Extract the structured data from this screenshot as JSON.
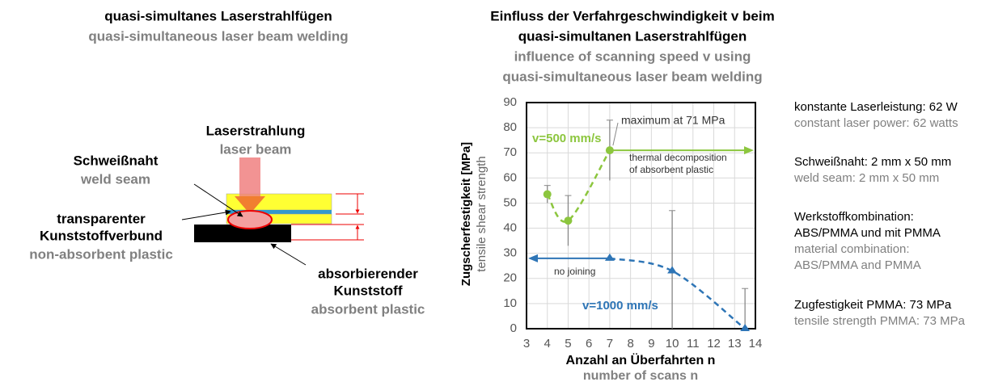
{
  "diagram": {
    "title": "quasi-simultanes Laserstrahlfügen",
    "subtitle": "quasi-simultaneous laser beam welding",
    "labels": [
      {
        "de": [
          "Laserstrahlung"
        ],
        "en": "laser beam"
      },
      {
        "de": [
          "Schweißnaht"
        ],
        "en": "weld seam"
      },
      {
        "de": [
          "transparenter",
          "Kunststoffverbund"
        ],
        "en": "non-absorbent plastic"
      },
      {
        "de": [
          "absorbierender",
          "Kunststoff"
        ],
        "en": "absorbent plastic"
      }
    ]
  },
  "chart_data": {
    "type": "line",
    "title": [
      "Einfluss der Verfahrgeschwindigkeit v beim",
      "quasi-simultanen Laserstrahlfügen"
    ],
    "subtitle": [
      "influence of scanning speed v using",
      "quasi-simultaneous laser beam welding"
    ],
    "ylabel": "Zugscherfestigkeit [MPa]",
    "ylabel_en": "tensile shear strength",
    "xlabel": "Anzahl an Überfahrten n",
    "xlabel_en": "number of scans n",
    "xlim": [
      3,
      14
    ],
    "xticks": [
      3,
      4,
      5,
      6,
      7,
      8,
      9,
      10,
      11,
      12,
      13,
      14
    ],
    "ylim": [
      0,
      90
    ],
    "yticks": [
      0,
      10,
      20,
      30,
      40,
      50,
      60,
      70,
      80,
      90
    ],
    "grid": true,
    "series": [
      {
        "name": "v=500 mm/s",
        "color": "#8cc63e",
        "marker": "circle",
        "x": [
          4,
          5,
          7
        ],
        "values": [
          53.5,
          43,
          71
        ],
        "errors": [
          3.5,
          10,
          12
        ]
      },
      {
        "name": "v=1000 mm/s",
        "color": "#2e75b6",
        "marker": "triangle",
        "x": [
          7,
          10,
          13.5
        ],
        "values": [
          28,
          23,
          0
        ],
        "errors": [
          null,
          24,
          16
        ]
      }
    ],
    "annotations": [
      {
        "text": [
          "maximum at 71 MPa"
        ]
      },
      {
        "text": [
          "thermal decomposition",
          "of absorbent plastic"
        ]
      },
      {
        "text": [
          "no joining"
        ]
      }
    ]
  },
  "notes": [
    {
      "de": [
        "konstante Laserleistung: 62 W"
      ],
      "en": [
        "constant laser power: 62 watts"
      ]
    },
    {
      "de": [
        "Schweißnaht: 2 mm x 50 mm"
      ],
      "en": [
        "weld seam: 2 mm x 50 mm"
      ]
    },
    {
      "de": [
        "Werkstoffkombination:",
        "ABS/PMMA und mit PMMA"
      ],
      "en": [
        "material combination:",
        "ABS/PMMA and PMMA"
      ]
    },
    {
      "de": [
        "Zugfestigkeit PMMA: 73 MPa"
      ],
      "en": [
        "tensile strength PMMA: 73 MPa"
      ]
    }
  ]
}
